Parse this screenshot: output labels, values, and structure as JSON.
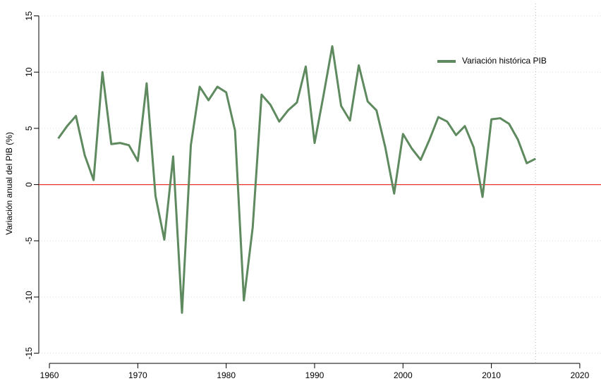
{
  "chart_data": {
    "type": "line",
    "y_label": "Variación anual del PIB (%)",
    "x": [
      1961,
      1962,
      1963,
      1964,
      1965,
      1966,
      1967,
      1968,
      1969,
      1970,
      1971,
      1972,
      1973,
      1974,
      1975,
      1976,
      1977,
      1978,
      1979,
      1980,
      1981,
      1982,
      1983,
      1984,
      1985,
      1986,
      1987,
      1988,
      1989,
      1990,
      1991,
      1992,
      1993,
      1994,
      1995,
      1996,
      1997,
      1998,
      1999,
      2000,
      2001,
      2002,
      2003,
      2004,
      2005,
      2006,
      2007,
      2008,
      2009,
      2010,
      2011,
      2012,
      2013,
      2014,
      2015
    ],
    "series": [
      {
        "name": "Variación histórica PIB",
        "color": "#5f8a5f",
        "values": [
          4.1,
          5.2,
          6.1,
          2.6,
          0.4,
          10.0,
          3.6,
          3.7,
          3.5,
          2.1,
          9.0,
          -1.0,
          -4.9,
          2.5,
          -11.4,
          3.5,
          8.7,
          7.5,
          8.7,
          8.2,
          4.8,
          -10.3,
          -3.8,
          8.0,
          7.1,
          5.6,
          6.6,
          7.3,
          10.5,
          3.7,
          7.9,
          12.3,
          7.0,
          5.7,
          10.6,
          7.4,
          6.6,
          3.3,
          -0.8,
          4.5,
          3.2,
          2.2,
          4.0,
          6.0,
          5.6,
          4.4,
          5.2,
          3.3,
          -1.1,
          5.8,
          5.9,
          5.4,
          4.0,
          1.9,
          2.3
        ]
      }
    ],
    "xlim": [
      1958.8,
      2022.4
    ],
    "xticks": [
      1960,
      1970,
      1980,
      1990,
      2000,
      2010,
      2020
    ],
    "ylim": [
      -15.9,
      16.1
    ],
    "yticks": [
      -15,
      -10,
      -5,
      0,
      5,
      10,
      15
    ],
    "grid": true,
    "hline": 0,
    "hline_color": "#e8322b",
    "vline": 2015,
    "legend": "upper right"
  }
}
